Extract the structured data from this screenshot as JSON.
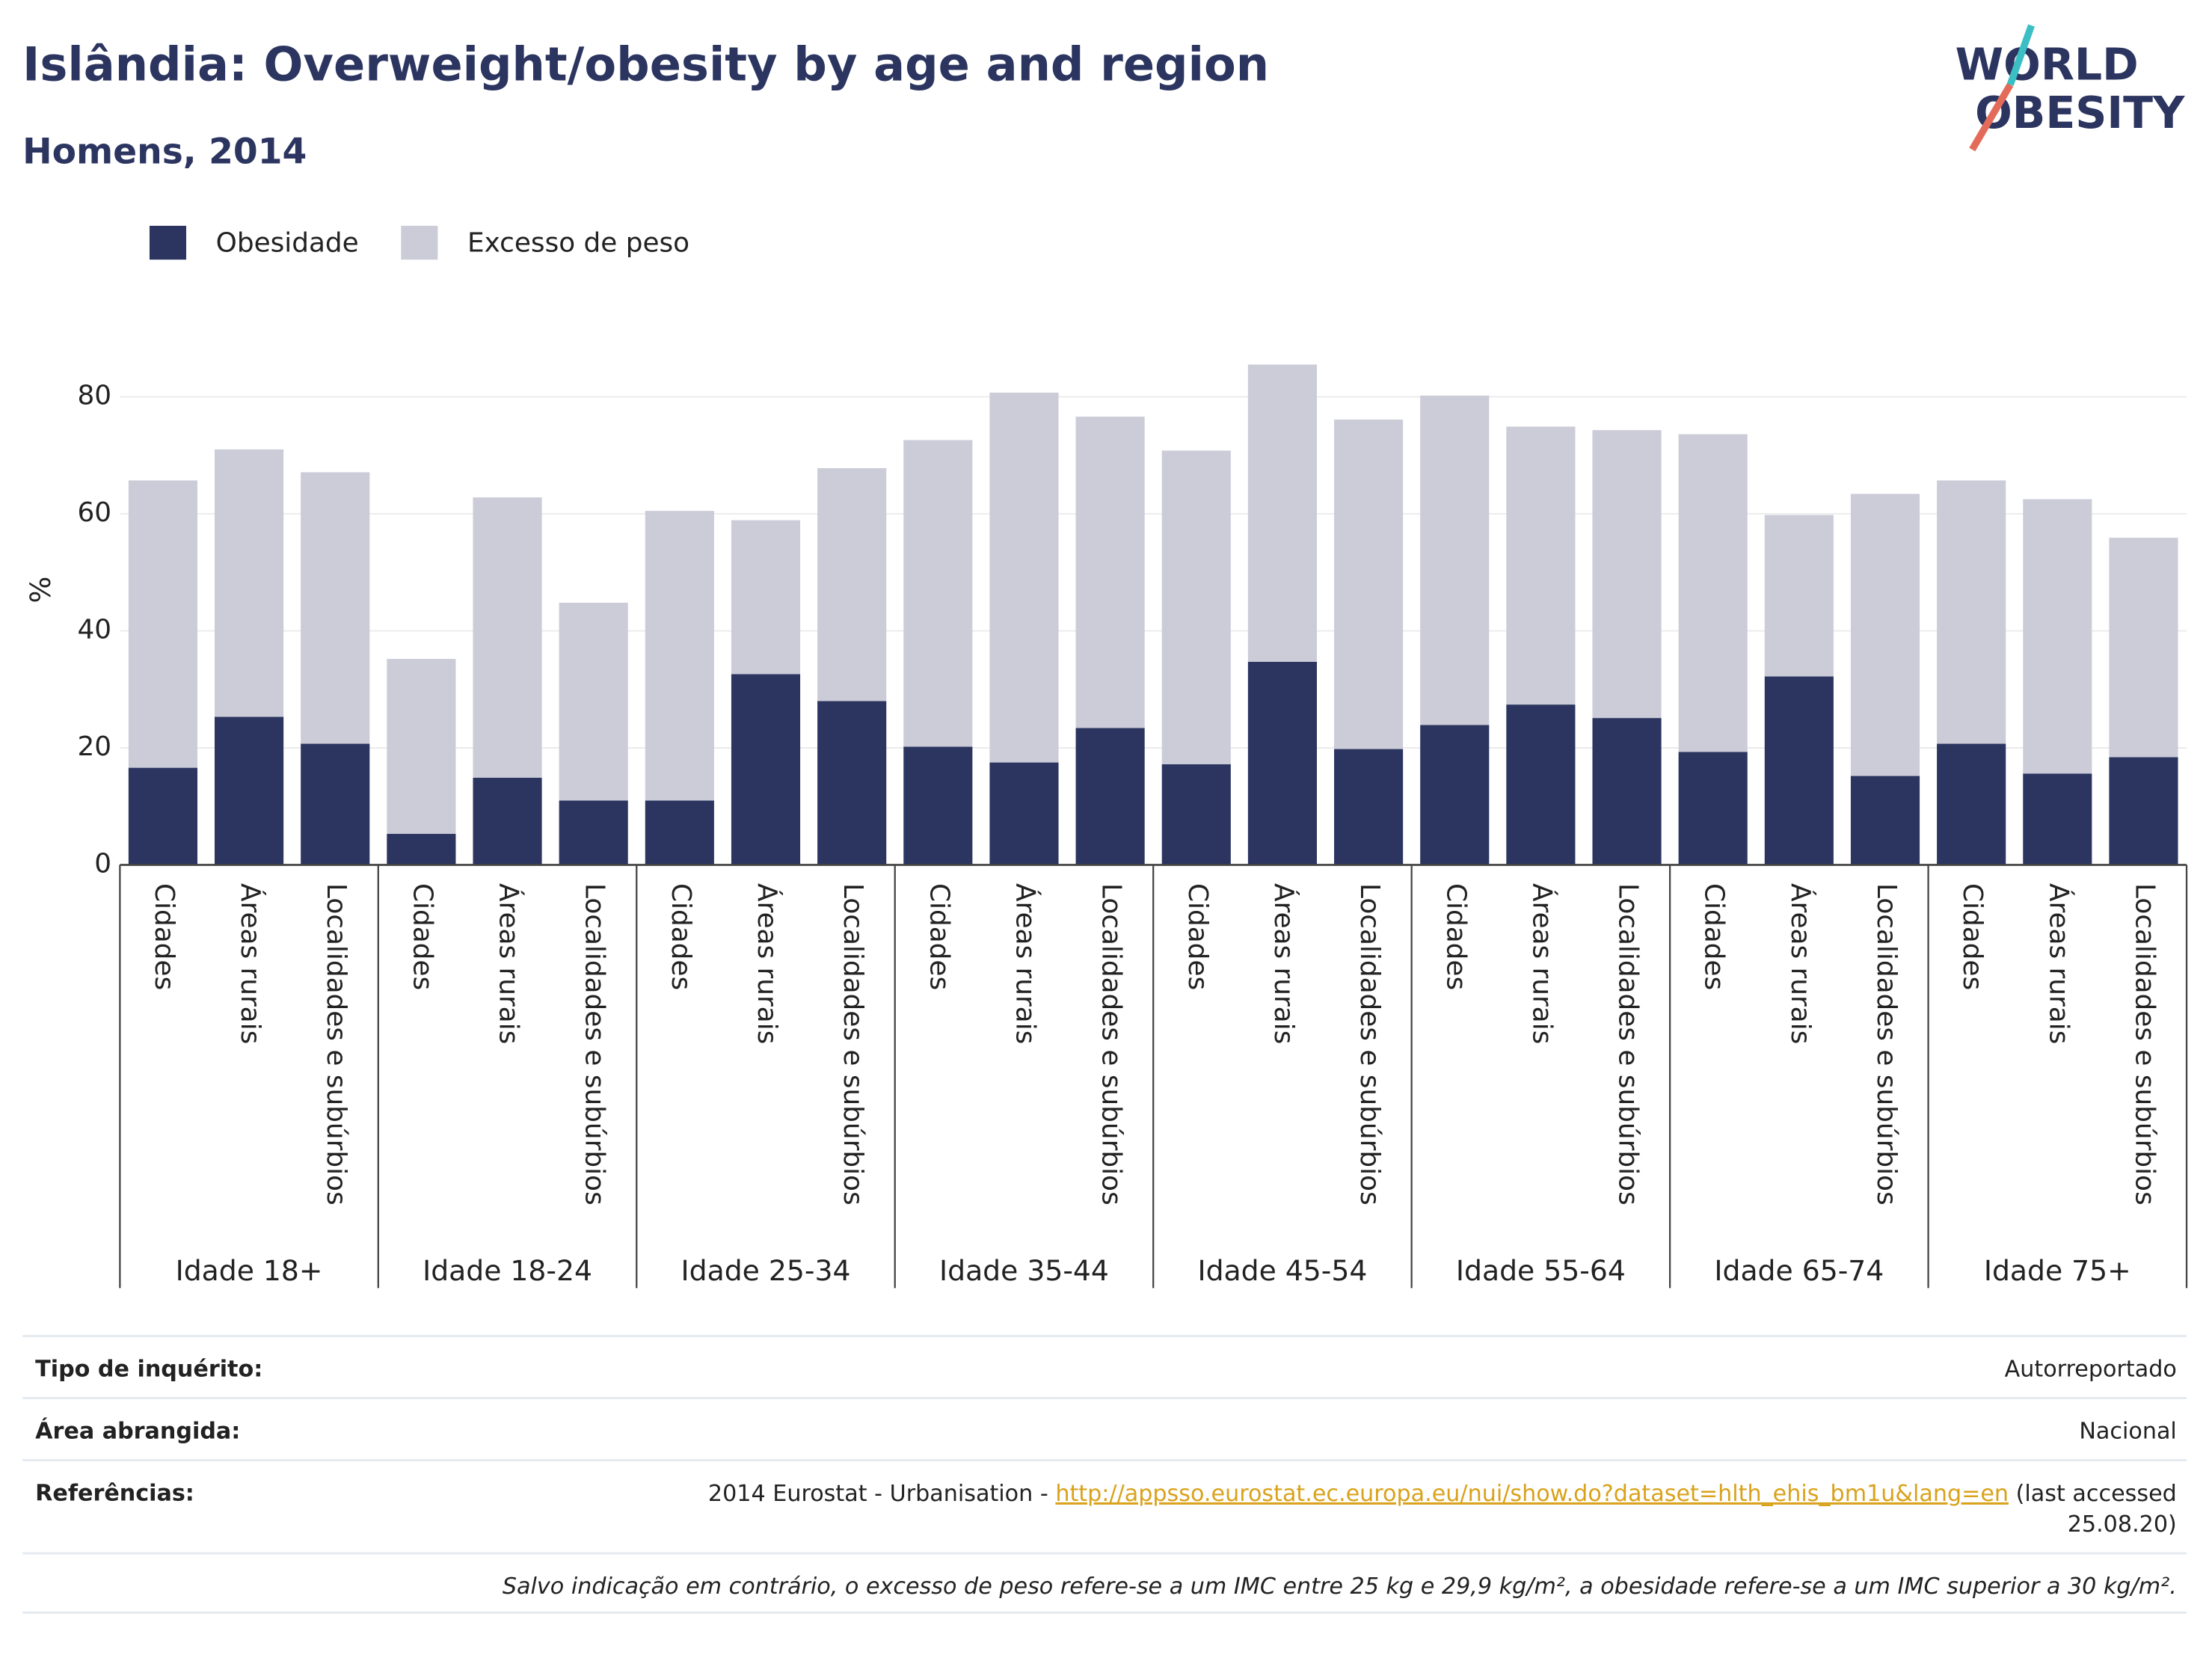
{
  "chart_data": {
    "type": "stacked_bar",
    "title": "Islândia: Overweight/obesity by age and region",
    "subtitle": "Homens, 2014",
    "logo": [
      "WORLD",
      "OBESITY"
    ],
    "y_label": "%",
    "groups": [
      "Idade 18+",
      "Idade 18-24",
      "Idade 25-34",
      "Idade 35-44",
      "Idade 45-54",
      "Idade 55-64",
      "Idade 65-74",
      "Idade 75+"
    ],
    "categories": [
      "Cidades",
      "Áreas rurais",
      "Localidades e subúrbios",
      "Cidades",
      "Áreas rurais",
      "Localidades e subúrbios",
      "Cidades",
      "Áreas rurais",
      "Localidades e subúrbios",
      "Cidades",
      "Áreas rurais",
      "Localidades e subúrbios",
      "Cidades",
      "Áreas rurais",
      "Localidades e subúrbios",
      "Cidades",
      "Áreas rurais",
      "Localidades e subúrbios",
      "Cidades",
      "Áreas rurais",
      "Localidades e subúrbios",
      "Cidades",
      "Áreas rurais",
      "Localidades e subúrbios"
    ],
    "series": [
      {
        "name": "Obesidade",
        "color": "#2b3560",
        "values": [
          16.6,
          25.3,
          20.7,
          5.3,
          14.9,
          11.0,
          11.0,
          32.6,
          28.0,
          20.2,
          17.5,
          23.4,
          17.2,
          34.7,
          19.8,
          23.9,
          27.4,
          25.1,
          19.3,
          32.2,
          15.2,
          20.7,
          15.6,
          18.4
        ]
      },
      {
        "name": "Excesso de peso",
        "color": "#cbccd8",
        "values": [
          49.1,
          45.7,
          46.4,
          29.9,
          47.9,
          33.8,
          49.5,
          26.3,
          39.8,
          52.4,
          63.2,
          53.2,
          53.6,
          50.8,
          56.3,
          56.3,
          47.5,
          49.2,
          54.3,
          27.6,
          48.2,
          45.0,
          46.9,
          37.5
        ]
      }
    ],
    "ylim": [
      0,
      88
    ],
    "yticks": [
      0,
      20,
      40,
      60,
      80
    ],
    "grid": true,
    "footer": {
      "rows": [
        {
          "label": "Tipo de inquérito:",
          "value": "Autorreportado"
        },
        {
          "label": "Área abrangida:",
          "value": "Nacional"
        }
      ],
      "reference_label": "Referências:",
      "reference_prefix": "2014 Eurostat - Urbanisation - ",
      "reference_link": "http://appsso.eurostat.ec.europa.eu/nui/show.do?dataset=hlth_ehis_bm1u&lang=en",
      "reference_suffix": " (last accessed",
      "reference_suffix_2": "25.08.20)",
      "note": "Salvo indicação em contrário, o excesso de peso refere-se a um IMC entre 25 kg e 29,9 kg/m², a obesidade refere-se a um IMC superior a 30 kg/m²."
    }
  }
}
